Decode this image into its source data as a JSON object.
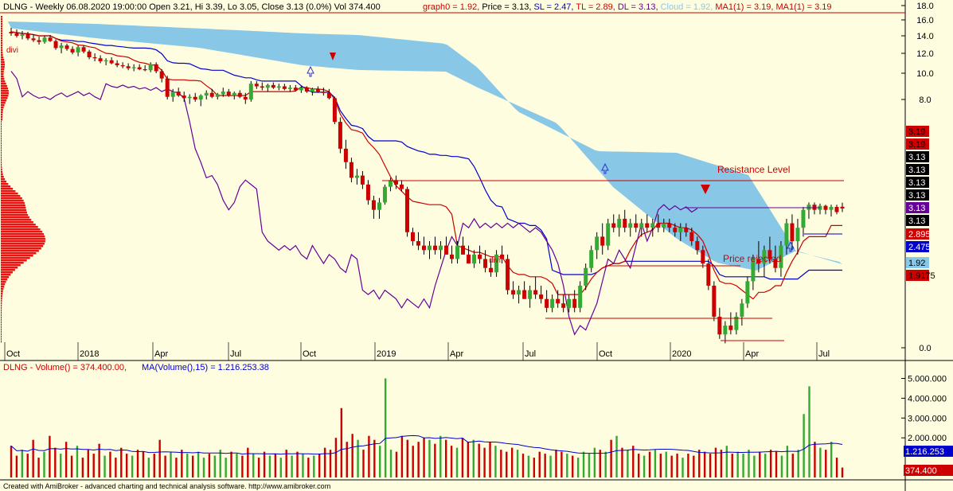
{
  "header": {
    "ticker": "DLNG",
    "info": "DLNG - Weekly 06.08.2020 19:00:00 Open 3.21, Hi 3.39, Lo 3.05, Close 3.13 (0.0%) Vol 374.400",
    "stats": [
      {
        "text": "graph0 = 1.92, ",
        "color": "#cc0000"
      },
      {
        "text": "Price = 3.13, ",
        "color": "#000000"
      },
      {
        "text": "SL = 2.47, ",
        "color": "#0000cc"
      },
      {
        "text": "TL = 2.89, ",
        "color": "#cc0000"
      },
      {
        "text": "DL = 3.13, ",
        "color": "#660099"
      },
      {
        "text": "Cloud = 1.92, ",
        "color": "#88c8e6"
      },
      {
        "text": "MA1(1) = 3.19, ",
        "color": "#cc0000"
      },
      {
        "text": "MA1(1) = 3.19",
        "color": "#cc0000"
      }
    ]
  },
  "volume_header": {
    "title": "DLNG - Volume() = 374.400.00,",
    "ma": "MA(Volume(),15) = 1.216.253.38"
  },
  "footer": "Created with AmiBroker - advanced charting and technical analysis software. http://www.amibroker.com",
  "annotations": {
    "resistance": "Resistance Level",
    "price_rejected": "Price rejected",
    "divi_1": "divi",
    "divi_2": "divi"
  },
  "colors": {
    "background": "#fffde0",
    "cloud": "#88c8e6",
    "up_candle": "#33aa33",
    "down_candle": "#cc0000",
    "kijun": "#0000cc",
    "tenkan": "#cc0000",
    "lagging": "#660099",
    "grid": "#d0c8a8"
  },
  "chart_data": {
    "type": "candlestick",
    "price_axis": {
      "ticks": [
        "18.0",
        "16.0",
        "14.0",
        "12.0",
        "10.0",
        "8.0",
        "0.0"
      ],
      "tick_values": [
        18,
        16,
        14,
        12,
        10,
        8,
        0
      ]
    },
    "time_axis": {
      "labels": [
        "Oct",
        "2018",
        "Apr",
        "Jul",
        "Oct",
        "2019",
        "Apr",
        "Jul",
        "Oct",
        "2020",
        "Apr",
        "Jul"
      ]
    },
    "right_labels": [
      {
        "text": "3.19",
        "bg": "#cc0000",
        "fg": "#000000"
      },
      {
        "text": "3.19",
        "bg": "#cc0000",
        "fg": "#000000"
      },
      {
        "text": "3.13",
        "bg": "#000000",
        "fg": "#ffffff"
      },
      {
        "text": "3.13",
        "bg": "#000000",
        "fg": "#ffffff"
      },
      {
        "text": "3.13",
        "bg": "#000000",
        "fg": "#ffffff"
      },
      {
        "text": "3.13",
        "bg": "#000000",
        "fg": "#ffffff"
      },
      {
        "text": "3.13",
        "bg": "#660099",
        "fg": "#ffffff"
      },
      {
        "text": "3.13",
        "bg": "#000000",
        "fg": "#ffffff"
      },
      {
        "text": "2.895",
        "bg": "#cc0000",
        "fg": "#ffffff"
      },
      {
        "text": "2.475",
        "bg": "#0000cc",
        "fg": "#ffffff"
      },
      {
        "text": "1.92",
        "bg": "#88c8e6",
        "fg": "#000000"
      },
      {
        "text": "1.9175",
        "bg": "#cc0000",
        "fg": "#000000"
      }
    ],
    "volume_axis": {
      "ticks": [
        "5.000.000",
        "4.000.000",
        "3.000.000",
        "2.000.000"
      ],
      "tick_values": [
        5000000,
        4000000,
        3000000,
        2000000
      ]
    },
    "volume_right_labels": [
      {
        "text": "1.216.253",
        "bg": "#0000cc",
        "fg": "#ffffff"
      },
      {
        "text": "374.400",
        "bg": "#cc0000",
        "fg": "#ffffff"
      }
    ],
    "candles": [
      [
        14.5,
        15.0,
        14.0,
        14.3
      ],
      [
        14.3,
        14.8,
        13.8,
        14.0
      ],
      [
        14.0,
        14.6,
        13.6,
        14.2
      ],
      [
        14.2,
        14.5,
        13.5,
        13.7
      ],
      [
        13.7,
        14.2,
        13.3,
        13.5
      ],
      [
        13.5,
        13.9,
        13.0,
        13.3
      ],
      [
        13.3,
        14.0,
        13.1,
        13.8
      ],
      [
        13.8,
        14.1,
        13.3,
        13.4
      ],
      [
        13.4,
        13.6,
        12.4,
        12.6
      ],
      [
        12.6,
        13.2,
        12.0,
        12.9
      ],
      [
        12.9,
        13.1,
        12.3,
        12.5
      ],
      [
        12.5,
        12.8,
        11.9,
        12.1
      ],
      [
        12.1,
        12.9,
        11.7,
        12.7
      ],
      [
        12.7,
        12.9,
        12.0,
        12.2
      ],
      [
        12.2,
        12.4,
        11.4,
        11.6
      ],
      [
        11.6,
        12.0,
        11.2,
        11.5
      ],
      [
        11.5,
        11.8,
        11.0,
        11.2
      ],
      [
        11.2,
        11.5,
        10.8,
        11.3
      ],
      [
        11.3,
        11.6,
        10.9,
        11.0
      ],
      [
        11.0,
        11.3,
        10.6,
        10.8
      ],
      [
        10.8,
        11.1,
        10.5,
        10.7
      ],
      [
        10.7,
        11.0,
        10.3,
        10.5
      ],
      [
        10.5,
        10.9,
        10.2,
        10.6
      ],
      [
        10.6,
        10.9,
        10.3,
        10.4
      ],
      [
        10.4,
        10.8,
        10.2,
        10.3
      ],
      [
        10.3,
        11.1,
        10.1,
        10.9
      ],
      [
        10.9,
        11.1,
        10.0,
        10.2
      ],
      [
        10.2,
        10.4,
        9.3,
        9.6
      ],
      [
        9.6,
        9.8,
        8.0,
        8.2
      ],
      [
        8.2,
        8.8,
        7.9,
        8.6
      ],
      [
        8.6,
        8.9,
        8.2,
        8.3
      ],
      [
        8.3,
        8.6,
        7.9,
        8.1
      ],
      [
        8.1,
        8.4,
        7.8,
        8.2
      ],
      [
        8.2,
        8.5,
        7.9,
        8.0
      ],
      [
        8.0,
        8.4,
        7.7,
        8.3
      ],
      [
        8.3,
        8.7,
        8.0,
        8.5
      ],
      [
        8.5,
        8.8,
        8.1,
        8.2
      ],
      [
        8.2,
        8.5,
        8.0,
        8.4
      ],
      [
        8.4,
        8.9,
        8.2,
        8.6
      ],
      [
        8.6,
        8.8,
        8.2,
        8.3
      ],
      [
        8.3,
        8.6,
        8.0,
        8.5
      ],
      [
        8.5,
        8.7,
        8.1,
        8.2
      ],
      [
        8.2,
        8.5,
        7.8,
        8.0
      ],
      [
        8.0,
        9.4,
        7.9,
        9.2
      ],
      [
        9.2,
        9.4,
        8.8,
        9.0
      ],
      [
        9.0,
        9.3,
        8.7,
        8.9
      ],
      [
        8.9,
        9.2,
        8.6,
        9.1
      ],
      [
        9.1,
        9.3,
        8.8,
        8.9
      ],
      [
        8.9,
        9.2,
        8.7,
        9.0
      ],
      [
        9.0,
        9.2,
        8.7,
        8.8
      ],
      [
        8.8,
        9.1,
        8.6,
        8.9
      ],
      [
        8.9,
        9.1,
        8.6,
        8.7
      ],
      [
        8.7,
        9.0,
        8.5,
        8.9
      ],
      [
        8.9,
        9.0,
        8.5,
        8.6
      ],
      [
        8.6,
        8.9,
        8.3,
        8.8
      ],
      [
        8.8,
        9.0,
        8.5,
        8.6
      ],
      [
        8.6,
        8.9,
        8.3,
        8.5
      ],
      [
        8.5,
        8.8,
        8.0,
        8.1
      ],
      [
        8.1,
        8.2,
        6.9,
        7.0
      ],
      [
        7.0,
        7.2,
        5.6,
        5.8
      ],
      [
        5.8,
        6.2,
        4.9,
        5.2
      ],
      [
        5.2,
        5.4,
        4.3,
        4.5
      ],
      [
        4.5,
        4.9,
        4.2,
        4.6
      ],
      [
        4.6,
        4.8,
        4.0,
        4.2
      ],
      [
        4.2,
        4.4,
        3.3,
        3.5
      ],
      [
        3.5,
        3.7,
        2.9,
        3.1
      ],
      [
        3.1,
        3.6,
        2.9,
        3.4
      ],
      [
        3.4,
        4.2,
        3.3,
        4.1
      ],
      [
        4.1,
        4.5,
        3.9,
        4.4
      ],
      [
        4.4,
        4.6,
        4.0,
        4.2
      ],
      [
        4.2,
        4.4,
        3.9,
        4.0
      ],
      [
        4.0,
        4.1,
        2.5,
        2.6
      ],
      [
        2.6,
        2.7,
        2.3,
        2.4
      ],
      [
        2.4,
        2.6,
        2.2,
        2.3
      ],
      [
        2.3,
        2.5,
        2.1,
        2.2
      ],
      [
        2.2,
        2.4,
        2.0,
        2.3
      ],
      [
        2.3,
        2.5,
        2.1,
        2.2
      ],
      [
        2.2,
        2.4,
        2.0,
        2.3
      ],
      [
        2.3,
        2.5,
        2.1,
        2.1
      ],
      [
        2.1,
        2.3,
        1.9,
        2.0
      ],
      [
        2.0,
        2.4,
        1.9,
        2.3
      ],
      [
        2.3,
        2.5,
        2.1,
        2.1
      ],
      [
        2.1,
        2.3,
        1.9,
        1.9
      ],
      [
        1.9,
        2.2,
        1.8,
        2.1
      ],
      [
        2.1,
        2.3,
        1.9,
        2.0
      ],
      [
        2.0,
        2.2,
        1.7,
        1.8
      ],
      [
        1.8,
        2.0,
        1.6,
        1.7
      ],
      [
        1.7,
        2.2,
        1.6,
        2.1
      ],
      [
        2.1,
        2.3,
        1.9,
        2.0
      ],
      [
        2.0,
        2.1,
        1.2,
        1.3
      ],
      [
        1.3,
        1.5,
        1.1,
        1.2
      ],
      [
        1.2,
        1.4,
        1.0,
        1.3
      ],
      [
        1.3,
        1.5,
        1.1,
        1.1
      ],
      [
        1.1,
        1.4,
        0.9,
        1.3
      ],
      [
        1.3,
        1.6,
        1.1,
        1.2
      ],
      [
        1.2,
        1.4,
        1.0,
        1.1
      ],
      [
        1.1,
        1.3,
        0.8,
        0.9
      ],
      [
        0.9,
        1.2,
        0.8,
        1.1
      ],
      [
        1.1,
        1.3,
        0.9,
        1.0
      ],
      [
        1.0,
        1.2,
        0.8,
        0.9
      ],
      [
        0.9,
        1.2,
        0.8,
        1.1
      ],
      [
        1.1,
        1.3,
        0.8,
        0.9
      ],
      [
        0.9,
        1.5,
        0.8,
        1.4
      ],
      [
        1.4,
        1.9,
        1.3,
        1.8
      ],
      [
        1.8,
        2.3,
        1.7,
        2.2
      ],
      [
        2.2,
        2.6,
        2.0,
        2.5
      ],
      [
        2.5,
        2.8,
        2.1,
        2.3
      ],
      [
        2.3,
        2.9,
        2.2,
        2.8
      ],
      [
        2.8,
        3.0,
        2.6,
        2.7
      ],
      [
        2.7,
        3.0,
        2.5,
        2.9
      ],
      [
        2.9,
        3.1,
        2.6,
        2.7
      ],
      [
        2.7,
        2.9,
        2.5,
        2.8
      ],
      [
        2.8,
        3.0,
        2.6,
        2.7
      ],
      [
        2.7,
        2.9,
        2.5,
        2.8
      ],
      [
        2.8,
        3.0,
        2.6,
        2.7
      ],
      [
        2.7,
        2.9,
        2.5,
        2.8
      ],
      [
        2.8,
        3.0,
        2.6,
        2.7
      ],
      [
        2.7,
        2.9,
        2.6,
        2.8
      ],
      [
        2.8,
        2.9,
        2.6,
        2.7
      ],
      [
        2.7,
        2.8,
        2.5,
        2.6
      ],
      [
        2.6,
        2.8,
        2.4,
        2.7
      ],
      [
        2.7,
        2.8,
        2.5,
        2.6
      ],
      [
        2.6,
        2.7,
        2.3,
        2.4
      ],
      [
        2.4,
        2.5,
        2.1,
        2.2
      ],
      [
        2.2,
        2.3,
        1.8,
        1.9
      ],
      [
        1.9,
        2.0,
        1.3,
        1.4
      ],
      [
        1.4,
        1.5,
        0.6,
        0.7
      ],
      [
        0.7,
        0.9,
        0.2,
        0.3
      ],
      [
        0.3,
        0.6,
        0.1,
        0.5
      ],
      [
        0.5,
        0.8,
        0.3,
        0.4
      ],
      [
        0.4,
        0.8,
        0.3,
        0.7
      ],
      [
        0.7,
        1.1,
        0.5,
        1.0
      ],
      [
        1.0,
        1.6,
        0.9,
        1.5
      ],
      [
        1.5,
        2.1,
        1.3,
        2.0
      ],
      [
        2.0,
        2.4,
        1.7,
        1.9
      ],
      [
        1.9,
        2.3,
        1.6,
        2.2
      ],
      [
        2.2,
        2.5,
        1.9,
        2.0
      ],
      [
        2.0,
        2.3,
        1.7,
        1.8
      ],
      [
        1.8,
        2.4,
        1.6,
        2.3
      ],
      [
        2.3,
        2.9,
        2.1,
        2.8
      ],
      [
        2.8,
        3.0,
        2.2,
        2.4
      ],
      [
        2.4,
        2.9,
        2.1,
        2.7
      ],
      [
        2.7,
        3.2,
        2.5,
        3.1
      ],
      [
        3.1,
        3.4,
        2.9,
        3.3
      ],
      [
        3.3,
        3.4,
        3.0,
        3.1
      ],
      [
        3.1,
        3.35,
        3.0,
        3.25
      ],
      [
        3.25,
        3.3,
        3.0,
        3.1
      ],
      [
        3.1,
        3.3,
        2.95,
        3.2
      ],
      [
        3.2,
        3.3,
        3.0,
        3.05
      ],
      [
        3.21,
        3.39,
        3.05,
        3.13
      ]
    ],
    "volume": [
      1.6,
      1.1,
      1.4,
      1.2,
      1.9,
      1.0,
      1.3,
      2.1,
      1.5,
      1.2,
      1.8,
      1.1,
      1.6,
      1.0,
      1.4,
      1.2,
      1.7,
      1.1,
      1.3,
      1.0,
      1.5,
      1.2,
      1.1,
      1.4,
      1.3,
      1.0,
      1.2,
      1.9,
      1.1,
      1.3,
      1.0,
      1.4,
      1.2,
      1.1,
      1.3,
      1.0,
      1.2,
      1.1,
      1.4,
      1.0,
      1.3,
      1.2,
      1.1,
      1.5,
      1.2,
      1.0,
      1.3,
      1.1,
      1.2,
      1.0,
      1.4,
      1.1,
      1.3,
      1.2,
      1.0,
      1.1,
      1.2,
      1.5,
      1.4,
      2.0,
      3.5,
      1.8,
      2.2,
      1.9,
      1.4,
      2.1,
      1.9,
      1.6,
      5.0,
      1.4,
      1.3,
      2.1,
      1.9,
      1.6,
      1.8,
      2.0,
      1.9,
      1.7,
      2.1,
      1.9,
      1.6,
      1.5,
      2.0,
      1.8,
      1.9,
      1.7,
      1.5,
      1.8,
      1.6,
      1.4,
      1.3,
      1.5,
      1.4,
      1.2,
      1.1,
      1.0,
      1.3,
      1.2,
      1.1,
      1.4,
      1.3,
      1.2,
      1.1,
      1.0,
      1.3,
      1.2,
      1.5,
      1.4,
      1.3,
      1.9,
      2.1,
      1.5,
      1.4,
      1.6,
      1.2,
      1.1,
      1.3,
      1.4,
      1.2,
      1.3,
      1.1,
      1.2,
      1.0,
      1.2,
      1.1,
      1.4,
      1.3,
      1.2,
      1.5,
      1.4,
      1.6,
      1.2,
      1.3,
      1.2,
      1.4,
      1.1,
      1.3,
      1.2,
      1.4,
      1.3,
      1.1,
      1.6,
      1.2,
      1.4,
      3.2,
      4.6,
      1.8,
      1.5,
      1.4,
      1.8,
      1.0,
      0.5
    ]
  }
}
